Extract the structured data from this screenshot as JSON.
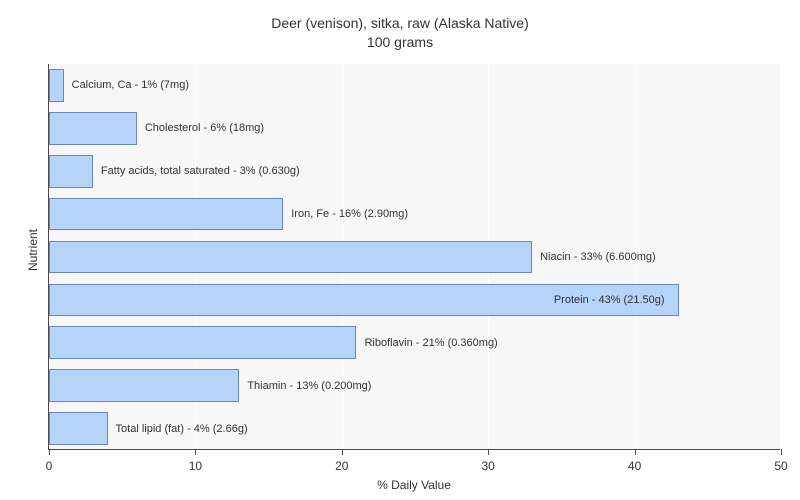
{
  "chart": {
    "title_line1": "Deer (venison), sitka, raw (Alaska Native)",
    "title_line2": "100 grams",
    "title_fontsize": 14,
    "ylabel": "Nutrient",
    "xlabel": "% Daily Value",
    "label_fontsize": 12,
    "type": "bar_horizontal",
    "background_color": "#ffffff",
    "plot_background_color": "#f7f7f7",
    "grid_color": "#ffffff",
    "axis_color": "#4a4a4a",
    "bar_color": "#b6d3fa",
    "bar_border_color": "#6a87b7",
    "text_color": "#333333",
    "xlim": [
      0,
      50
    ],
    "xtick_step": 10,
    "xticks": [
      0,
      10,
      20,
      30,
      40,
      50
    ],
    "bar_height_ratio": 0.76,
    "bar_label_fontsize": 11,
    "bars": [
      {
        "label": "Calcium, Ca - 1% (7mg)",
        "value": 1,
        "label_inside": false
      },
      {
        "label": "Cholesterol - 6% (18mg)",
        "value": 6,
        "label_inside": false
      },
      {
        "label": "Fatty acids, total saturated - 3% (0.630g)",
        "value": 3,
        "label_inside": false
      },
      {
        "label": "Iron, Fe - 16% (2.90mg)",
        "value": 16,
        "label_inside": false
      },
      {
        "label": "Niacin - 33% (6.600mg)",
        "value": 33,
        "label_inside": false
      },
      {
        "label": "Protein - 43% (21.50g)",
        "value": 43,
        "label_inside": true
      },
      {
        "label": "Riboflavin - 21% (0.360mg)",
        "value": 21,
        "label_inside": false
      },
      {
        "label": "Thiamin - 13% (0.200mg)",
        "value": 13,
        "label_inside": false
      },
      {
        "label": "Total lipid (fat) - 4% (2.66g)",
        "value": 4,
        "label_inside": false
      }
    ]
  }
}
